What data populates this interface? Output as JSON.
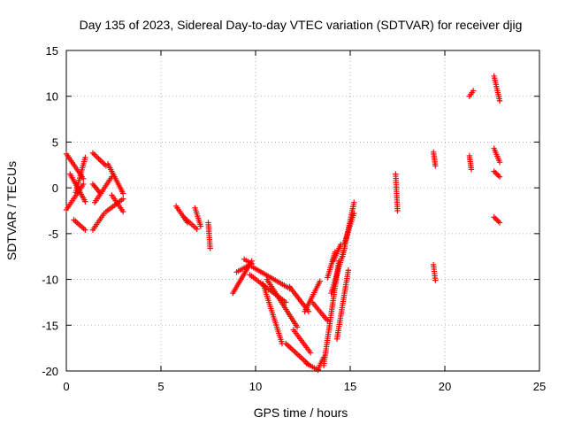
{
  "chart_data": {
    "type": "scatter",
    "title": "Day 135 of 2023, Sidereal Day-to-day VTEC variation (SDTVAR) for receiver djig",
    "xlabel": "GPS time / hours",
    "ylabel": "SDTVAR / TECUs",
    "xlim": [
      0,
      25
    ],
    "ylim": [
      -20,
      15
    ],
    "xticks": [
      0,
      5,
      10,
      15,
      20,
      25
    ],
    "yticks": [
      -20,
      -15,
      -10,
      -5,
      0,
      5,
      10,
      15
    ],
    "grid": true,
    "marker": "plus",
    "color": "#ff0000",
    "arcs": [
      {
        "x0": 0.0,
        "y0": 3.7,
        "x1": 0.9,
        "y1": 1.0
      },
      {
        "x0": 0.0,
        "y0": -2.4,
        "x1": 0.9,
        "y1": 0.4
      },
      {
        "x0": 0.2,
        "y0": 1.5,
        "x1": 1.0,
        "y1": -1.5
      },
      {
        "x0": 0.4,
        "y0": -3.5,
        "x1": 1.0,
        "y1": -4.6
      },
      {
        "x0": 0.5,
        "y0": -0.5,
        "x1": 1.0,
        "y1": 3.3
      },
      {
        "x0": 1.4,
        "y0": 3.8,
        "x1": 2.1,
        "y1": 2.4
      },
      {
        "x0": 1.4,
        "y0": -4.6,
        "x1": 2.0,
        "y1": -2.8
      },
      {
        "x0": 1.4,
        "y0": 0.4,
        "x1": 1.8,
        "y1": -0.6
      },
      {
        "x0": 1.5,
        "y0": -1.6,
        "x1": 2.4,
        "y1": 1.2
      },
      {
        "x0": 2.1,
        "y0": -2.6,
        "x1": 3.0,
        "y1": -1.2
      },
      {
        "x0": 2.2,
        "y0": 2.6,
        "x1": 3.0,
        "y1": -0.6
      },
      {
        "x0": 2.4,
        "y0": -0.8,
        "x1": 3.0,
        "y1": -2.6
      },
      {
        "x0": 5.8,
        "y0": -2.0,
        "x1": 6.4,
        "y1": -3.8
      },
      {
        "x0": 6.2,
        "y0": -3.2,
        "x1": 6.9,
        "y1": -4.5
      },
      {
        "x0": 6.8,
        "y0": -2.2,
        "x1": 7.1,
        "y1": -4.2
      },
      {
        "x0": 7.5,
        "y0": -3.8,
        "x1": 7.6,
        "y1": -6.6
      },
      {
        "x0": 8.8,
        "y0": -11.5,
        "x1": 9.8,
        "y1": -8.0
      },
      {
        "x0": 9.0,
        "y0": -9.2,
        "x1": 9.7,
        "y1": -8.4
      },
      {
        "x0": 9.4,
        "y0": -7.8,
        "x1": 9.8,
        "y1": -8.3
      },
      {
        "x0": 9.7,
        "y0": -9.5,
        "x1": 11.6,
        "y1": -12.5
      },
      {
        "x0": 9.8,
        "y0": -8.6,
        "x1": 11.8,
        "y1": -11.0
      },
      {
        "x0": 10.4,
        "y0": -10.5,
        "x1": 11.4,
        "y1": -17.0
      },
      {
        "x0": 10.6,
        "y0": -10.0,
        "x1": 12.2,
        "y1": -15.2
      },
      {
        "x0": 11.6,
        "y0": -17.0,
        "x1": 12.8,
        "y1": -19.3
      },
      {
        "x0": 11.8,
        "y0": -10.8,
        "x1": 12.8,
        "y1": -13.5
      },
      {
        "x0": 12.0,
        "y0": -15.5,
        "x1": 12.9,
        "y1": -18.0
      },
      {
        "x0": 12.6,
        "y0": -13.5,
        "x1": 13.4,
        "y1": -10.2
      },
      {
        "x0": 12.7,
        "y0": -19.2,
        "x1": 13.3,
        "y1": -19.9
      },
      {
        "x0": 13.0,
        "y0": -12.5,
        "x1": 13.8,
        "y1": -14.5
      },
      {
        "x0": 13.3,
        "y0": -19.8,
        "x1": 13.6,
        "y1": -18.5
      },
      {
        "x0": 13.6,
        "y0": -19.4,
        "x1": 14.4,
        "y1": -8.0
      },
      {
        "x0": 13.8,
        "y0": -9.8,
        "x1": 14.2,
        "y1": -7.0
      },
      {
        "x0": 14.0,
        "y0": -11.5,
        "x1": 14.7,
        "y1": -6.6
      },
      {
        "x0": 14.1,
        "y0": -8.0,
        "x1": 14.5,
        "y1": -6.2
      },
      {
        "x0": 14.3,
        "y0": -16.5,
        "x1": 14.9,
        "y1": -9.0
      },
      {
        "x0": 14.6,
        "y0": -7.5,
        "x1": 15.2,
        "y1": -1.6
      },
      {
        "x0": 14.7,
        "y0": -6.0,
        "x1": 15.2,
        "y1": -2.8
      },
      {
        "x0": 17.4,
        "y0": 1.5,
        "x1": 17.5,
        "y1": -2.5
      },
      {
        "x0": 19.4,
        "y0": -8.4,
        "x1": 19.5,
        "y1": -10.1
      },
      {
        "x0": 19.4,
        "y0": 3.9,
        "x1": 19.5,
        "y1": 2.4
      },
      {
        "x0": 21.3,
        "y0": 3.5,
        "x1": 21.4,
        "y1": 2.0
      },
      {
        "x0": 21.3,
        "y0": 10.0,
        "x1": 21.5,
        "y1": 10.6
      },
      {
        "x0": 22.6,
        "y0": 12.2,
        "x1": 22.9,
        "y1": 9.5
      },
      {
        "x0": 22.6,
        "y0": 4.3,
        "x1": 22.9,
        "y1": 2.8
      },
      {
        "x0": 22.6,
        "y0": 1.8,
        "x1": 22.9,
        "y1": 1.2
      },
      {
        "x0": 22.6,
        "y0": -3.2,
        "x1": 22.9,
        "y1": -3.8
      }
    ]
  }
}
